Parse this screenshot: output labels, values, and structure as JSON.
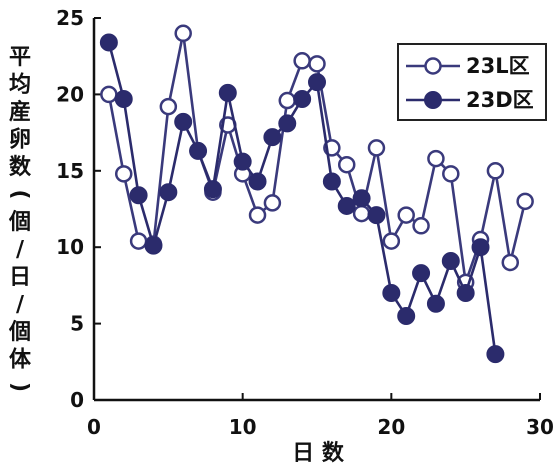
{
  "chart_data": {
    "type": "line",
    "ylabel": "平均産卵数(個/日/個体)",
    "xlabel": "日 数",
    "xlim": [
      0,
      30
    ],
    "ylim": [
      0,
      25
    ],
    "xticks": [
      "0",
      "10",
      "20",
      "30"
    ],
    "yticks": [
      "0",
      "5",
      "10",
      "15",
      "20",
      "25"
    ],
    "legend_position": "top-right",
    "series": [
      {
        "name": "23L区",
        "marker": "open-circle",
        "color": "#3a3a7c",
        "x": [
          1,
          2,
          3,
          4,
          5,
          6,
          7,
          8,
          9,
          10,
          11,
          12,
          13,
          14,
          15,
          16,
          17,
          18,
          19,
          20,
          21,
          22,
          23,
          24,
          25,
          26,
          27,
          28,
          29
        ],
        "y": [
          20.0,
          14.8,
          10.4,
          10.2,
          19.2,
          24.0,
          16.3,
          13.6,
          18.0,
          14.8,
          12.1,
          12.9,
          19.6,
          22.2,
          22.0,
          16.5,
          15.4,
          12.2,
          16.5,
          10.4,
          12.1,
          11.4,
          15.8,
          14.8,
          7.7,
          10.5,
          15.0,
          9.0,
          13.0
        ]
      },
      {
        "name": "23D区",
        "marker": "filled-circle",
        "color": "#2b2b6c",
        "x": [
          1,
          2,
          3,
          4,
          5,
          6,
          7,
          8,
          9,
          10,
          11,
          12,
          13,
          14,
          15,
          16,
          17,
          18,
          19,
          20,
          21,
          22,
          23,
          24,
          25,
          26,
          27
        ],
        "y": [
          23.4,
          19.7,
          13.4,
          10.1,
          13.6,
          18.2,
          16.3,
          13.8,
          20.1,
          15.6,
          14.3,
          17.2,
          18.1,
          19.7,
          20.8,
          14.3,
          12.7,
          13.2,
          12.1,
          7.0,
          5.5,
          8.3,
          6.3,
          9.1,
          7.0,
          10.0,
          3.0
        ]
      }
    ]
  }
}
